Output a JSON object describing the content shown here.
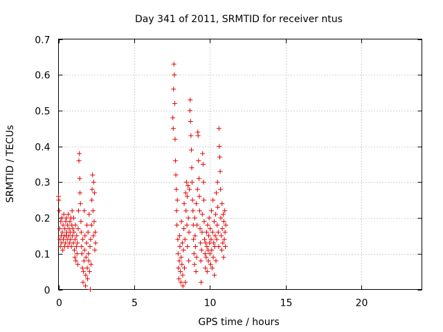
{
  "chart_data": {
    "type": "scatter",
    "title": "Day 341 of 2011, SRMTID for receiver ntus",
    "xlabel": "GPS time / hours",
    "ylabel": "SRMTID / TECUs",
    "xlim": [
      0,
      24
    ],
    "ylim": [
      0,
      0.7
    ],
    "x_ticks": [
      0,
      5,
      10,
      15,
      20
    ],
    "x_tick_labels": [
      "0",
      "5",
      "10",
      "15",
      "20"
    ],
    "y_ticks": [
      0,
      0.1,
      0.2,
      0.3,
      0.4,
      0.5,
      0.6,
      0.7
    ],
    "y_tick_labels": [
      "0",
      "0.1",
      "0.2",
      "0.3",
      "0.4",
      "0.5",
      "0.6",
      "0.7"
    ],
    "grid": true,
    "marker": "plus",
    "color": "#e00000",
    "series": [
      {
        "name": "SRMTID",
        "points": [
          [
            0.0,
            0.26
          ],
          [
            0.02,
            0.25
          ],
          [
            0.05,
            0.22
          ],
          [
            0.08,
            0.17
          ],
          [
            0.1,
            0.14
          ],
          [
            0.12,
            0.12
          ],
          [
            0.15,
            0.19
          ],
          [
            0.18,
            0.15
          ],
          [
            0.2,
            0.13
          ],
          [
            0.22,
            0.2
          ],
          [
            0.25,
            0.16
          ],
          [
            0.28,
            0.11
          ],
          [
            0.3,
            0.18
          ],
          [
            0.32,
            0.14
          ],
          [
            0.35,
            0.21
          ],
          [
            0.38,
            0.15
          ],
          [
            0.4,
            0.12
          ],
          [
            0.42,
            0.17
          ],
          [
            0.45,
            0.13
          ],
          [
            0.48,
            0.19
          ],
          [
            0.5,
            0.15
          ],
          [
            0.52,
            0.2
          ],
          [
            0.55,
            0.16
          ],
          [
            0.58,
            0.14
          ],
          [
            0.6,
            0.18
          ],
          [
            0.62,
            0.12
          ],
          [
            0.65,
            0.21
          ],
          [
            0.68,
            0.15
          ],
          [
            0.7,
            0.17
          ],
          [
            0.72,
            0.13
          ],
          [
            0.75,
            0.19
          ],
          [
            0.78,
            0.16
          ],
          [
            0.8,
            0.14
          ],
          [
            0.82,
            0.2
          ],
          [
            0.85,
            0.12
          ],
          [
            0.88,
            0.18
          ],
          [
            0.9,
            0.22
          ],
          [
            0.92,
            0.15
          ],
          [
            0.95,
            0.17
          ],
          [
            0.98,
            0.13
          ],
          [
            1.0,
            0.2
          ],
          [
            1.02,
            0.16
          ],
          [
            1.05,
            0.11
          ],
          [
            1.08,
            0.09
          ],
          [
            1.1,
            0.14
          ],
          [
            1.12,
            0.18
          ],
          [
            1.15,
            0.08
          ],
          [
            1.18,
            0.12
          ],
          [
            1.2,
            0.15
          ],
          [
            1.22,
            0.1
          ],
          [
            1.25,
            0.13
          ],
          [
            1.28,
            0.07
          ],
          [
            1.3,
            0.17
          ],
          [
            1.32,
            0.22
          ],
          [
            1.35,
            0.36
          ],
          [
            1.38,
            0.38
          ],
          [
            1.4,
            0.31
          ],
          [
            1.42,
            0.27
          ],
          [
            1.45,
            0.24
          ],
          [
            1.48,
            0.19
          ],
          [
            1.5,
            0.16
          ],
          [
            1.52,
            0.12
          ],
          [
            1.55,
            0.1
          ],
          [
            1.58,
            0.06
          ],
          [
            1.6,
            0.14
          ],
          [
            1.62,
            0.02
          ],
          [
            1.65,
            0.05
          ],
          [
            1.68,
            0.08
          ],
          [
            1.7,
            0.22
          ],
          [
            1.72,
            0.11
          ],
          [
            1.75,
            0.15
          ],
          [
            1.78,
            0.01
          ],
          [
            1.8,
            0.04
          ],
          [
            1.82,
            0.09
          ],
          [
            1.85,
            0.13
          ],
          [
            1.88,
            0.18
          ],
          [
            1.9,
            0.06
          ],
          [
            1.92,
            0.03
          ],
          [
            1.95,
            0.16
          ],
          [
            1.98,
            0.1
          ],
          [
            2.0,
            0.08
          ],
          [
            2.02,
            0.21
          ],
          [
            2.05,
            0.05
          ],
          [
            2.08,
            0.12
          ],
          [
            2.1,
            0.0
          ],
          [
            2.12,
            0.14
          ],
          [
            2.15,
            0.07
          ],
          [
            2.18,
            0.18
          ],
          [
            2.2,
            0.25
          ],
          [
            2.22,
            0.28
          ],
          [
            2.25,
            0.32
          ],
          [
            2.28,
            0.22
          ],
          [
            2.3,
            0.15
          ],
          [
            2.32,
            0.3
          ],
          [
            2.35,
            0.19
          ],
          [
            2.38,
            0.27
          ],
          [
            2.4,
            0.11
          ],
          [
            2.42,
            0.16
          ],
          [
            2.45,
            0.13
          ],
          [
            7.55,
            0.48
          ],
          [
            7.58,
            0.45
          ],
          [
            7.6,
            0.56
          ],
          [
            7.62,
            0.63
          ],
          [
            7.65,
            0.6
          ],
          [
            7.68,
            0.52
          ],
          [
            7.7,
            0.42
          ],
          [
            7.72,
            0.36
          ],
          [
            7.75,
            0.32
          ],
          [
            7.78,
            0.28
          ],
          [
            7.8,
            0.22
          ],
          [
            7.82,
            0.18
          ],
          [
            7.85,
            0.25
          ],
          [
            7.88,
            0.14
          ],
          [
            7.9,
            0.1
          ],
          [
            7.92,
            0.06
          ],
          [
            7.95,
            0.03
          ],
          [
            7.98,
            0.08
          ],
          [
            8.0,
            0.15
          ],
          [
            8.02,
            0.12
          ],
          [
            8.05,
            0.05
          ],
          [
            8.08,
            0.02
          ],
          [
            8.1,
            0.09
          ],
          [
            8.12,
            0.19
          ],
          [
            8.15,
            0.07
          ],
          [
            8.18,
            0.13
          ],
          [
            8.2,
            0.04
          ],
          [
            8.22,
            0.01
          ],
          [
            8.25,
            0.11
          ],
          [
            8.28,
            0.17
          ],
          [
            8.3,
            0.24
          ],
          [
            8.32,
            0.06
          ],
          [
            8.35,
            0.14
          ],
          [
            8.38,
            0.02
          ],
          [
            8.4,
            0.27
          ],
          [
            8.42,
            0.22
          ],
          [
            8.45,
            0.3
          ],
          [
            8.48,
            0.18
          ],
          [
            8.5,
            0.26
          ],
          [
            8.52,
            0.12
          ],
          [
            8.55,
            0.29
          ],
          [
            8.58,
            0.2
          ],
          [
            8.6,
            0.08
          ],
          [
            8.62,
            0.16
          ],
          [
            8.65,
            0.28
          ],
          [
            8.68,
            0.5
          ],
          [
            8.7,
            0.53
          ],
          [
            8.72,
            0.47
          ],
          [
            8.75,
            0.43
          ],
          [
            8.78,
            0.39
          ],
          [
            8.8,
            0.34
          ],
          [
            8.82,
            0.3
          ],
          [
            8.85,
            0.25
          ],
          [
            8.88,
            0.22
          ],
          [
            8.9,
            0.18
          ],
          [
            8.92,
            0.14
          ],
          [
            8.95,
            0.1
          ],
          [
            8.98,
            0.07
          ],
          [
            9.0,
            0.2
          ],
          [
            9.02,
            0.15
          ],
          [
            9.05,
            0.12
          ],
          [
            9.08,
            0.05
          ],
          [
            9.1,
            0.24
          ],
          [
            9.12,
            0.09
          ],
          [
            9.15,
            0.18
          ],
          [
            9.18,
            0.28
          ],
          [
            9.2,
            0.44
          ],
          [
            9.22,
            0.43
          ],
          [
            9.25,
            0.36
          ],
          [
            9.28,
            0.31
          ],
          [
            9.3,
            0.26
          ],
          [
            9.32,
            0.22
          ],
          [
            9.35,
            0.17
          ],
          [
            9.38,
            0.13
          ],
          [
            9.4,
            0.08
          ],
          [
            9.42,
            0.02
          ],
          [
            9.45,
            0.11
          ],
          [
            9.48,
            0.16
          ],
          [
            9.5,
            0.21
          ],
          [
            9.52,
            0.38
          ],
          [
            9.55,
            0.35
          ],
          [
            9.58,
            0.3
          ],
          [
            9.6,
            0.25
          ],
          [
            9.62,
            0.19
          ],
          [
            9.65,
            0.14
          ],
          [
            9.68,
            0.1
          ],
          [
            9.7,
            0.06
          ],
          [
            9.72,
            0.13
          ],
          [
            9.75,
            0.09
          ],
          [
            9.78,
            0.16
          ],
          [
            9.8,
            0.12
          ],
          [
            9.82,
            0.05
          ],
          [
            9.85,
            0.18
          ],
          [
            9.88,
            0.11
          ],
          [
            9.9,
            0.08
          ],
          [
            9.92,
            0.15
          ],
          [
            9.95,
            0.2
          ],
          [
            9.98,
            0.13
          ],
          [
            10.0,
            0.1
          ],
          [
            10.02,
            0.17
          ],
          [
            10.05,
            0.07
          ],
          [
            10.08,
            0.14
          ],
          [
            10.1,
            0.22
          ],
          [
            10.12,
            0.11
          ],
          [
            10.15,
            0.06
          ],
          [
            10.18,
            0.16
          ],
          [
            10.2,
            0.25
          ],
          [
            10.22,
            0.09
          ],
          [
            10.25,
            0.13
          ],
          [
            10.28,
            0.19
          ],
          [
            10.3,
            0.04
          ],
          [
            10.32,
            0.12
          ],
          [
            10.35,
            0.15
          ],
          [
            10.38,
            0.21
          ],
          [
            10.4,
            0.08
          ],
          [
            10.42,
            0.27
          ],
          [
            10.45,
            0.14
          ],
          [
            10.48,
            0.18
          ],
          [
            10.5,
            0.3
          ],
          [
            10.52,
            0.23
          ],
          [
            10.55,
            0.16
          ],
          [
            10.58,
            0.12
          ],
          [
            10.6,
            0.45
          ],
          [
            10.62,
            0.4
          ],
          [
            10.65,
            0.37
          ],
          [
            10.68,
            0.33
          ],
          [
            10.7,
            0.28
          ],
          [
            10.72,
            0.2
          ],
          [
            10.75,
            0.15
          ],
          [
            10.78,
            0.11
          ],
          [
            10.8,
            0.24
          ],
          [
            10.82,
            0.17
          ],
          [
            10.85,
            0.13
          ],
          [
            10.88,
            0.21
          ],
          [
            10.9,
            0.09
          ],
          [
            10.92,
            0.19
          ],
          [
            10.95,
            0.14
          ],
          [
            10.98,
            0.22
          ],
          [
            11.0,
            0.16
          ],
          [
            11.02,
            0.12
          ],
          [
            11.05,
            0.18
          ]
        ]
      }
    ]
  }
}
